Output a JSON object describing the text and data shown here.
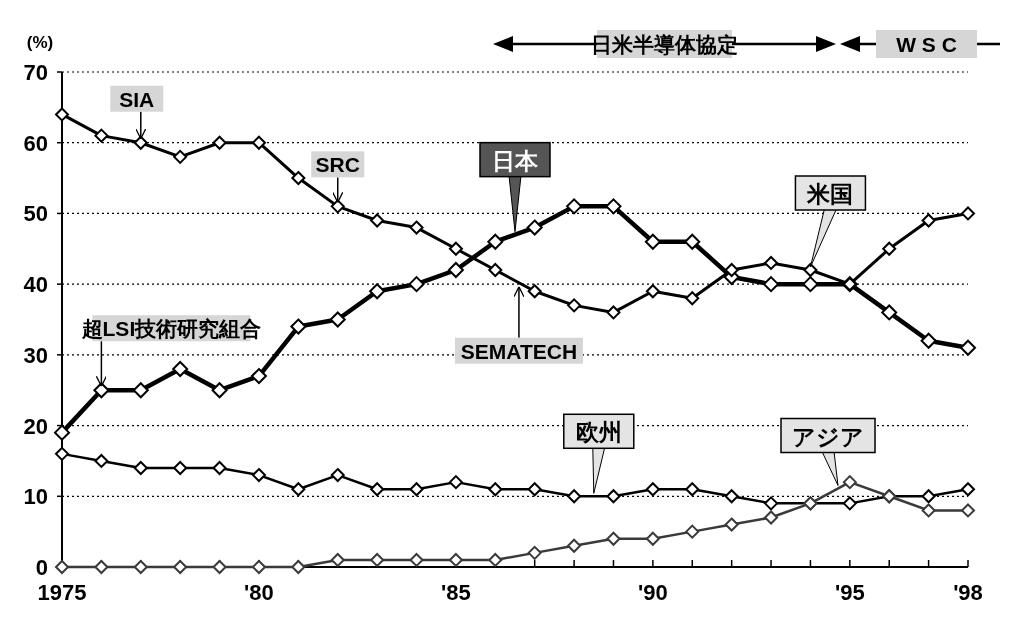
{
  "chart_data": {
    "type": "line",
    "ylabel": "(%)",
    "x": [
      1975,
      1976,
      1977,
      1978,
      1979,
      1980,
      1981,
      1982,
      1983,
      1984,
      1985,
      1986,
      1987,
      1988,
      1989,
      1990,
      1991,
      1992,
      1993,
      1994,
      1995,
      1996,
      1997,
      1998
    ],
    "series": [
      {
        "name": "日本",
        "color": "#000000",
        "values": [
          19,
          25,
          25,
          28,
          25,
          27,
          34,
          35,
          39,
          40,
          42,
          46,
          48,
          51,
          51,
          46,
          46,
          41,
          40,
          40,
          40,
          36,
          32,
          31
        ]
      },
      {
        "name": "米国",
        "color": "#000000",
        "values": [
          64,
          61,
          60,
          58,
          60,
          60,
          55,
          51,
          49,
          48,
          45,
          42,
          39,
          37,
          36,
          39,
          38,
          42,
          43,
          42,
          40,
          45,
          49,
          50
        ]
      },
      {
        "name": "欧州",
        "color": "#000000",
        "values": [
          16,
          15,
          14,
          14,
          14,
          13,
          11,
          13,
          11,
          11,
          12,
          11,
          11,
          10,
          10,
          11,
          11,
          10,
          9,
          9,
          9,
          10,
          10,
          11
        ]
      },
      {
        "name": "アジア",
        "color": "#3a3a3a",
        "values": [
          0,
          0,
          0,
          0,
          0,
          0,
          0,
          1,
          1,
          1,
          1,
          1,
          2,
          3,
          4,
          4,
          5,
          6,
          7,
          9,
          12,
          10,
          8,
          8
        ]
      }
    ],
    "xlim": [
      1975,
      1998
    ],
    "xticks": [
      1975,
      {
        "value": 1976,
        "label": null
      },
      {
        "value": 1977,
        "label": null
      },
      {
        "value": 1978,
        "label": null
      },
      {
        "value": 1979,
        "label": null
      },
      {
        "value": 1980,
        "label": "'80"
      },
      {
        "value": 1981,
        "label": null
      },
      {
        "value": 1982,
        "label": null
      },
      {
        "value": 1983,
        "label": null
      },
      {
        "value": 1984,
        "label": null
      },
      {
        "value": 1985,
        "label": "'85"
      },
      {
        "value": 1986,
        "label": null
      },
      {
        "value": 1987,
        "label": null
      },
      {
        "value": 1988,
        "label": null
      },
      {
        "value": 1989,
        "label": null
      },
      {
        "value": 1990,
        "label": "'90"
      },
      {
        "value": 1991,
        "label": null
      },
      {
        "value": 1992,
        "label": null
      },
      {
        "value": 1993,
        "label": null
      },
      {
        "value": 1994,
        "label": null
      },
      {
        "value": 1995,
        "label": "'95"
      },
      {
        "value": 1996,
        "label": null
      },
      {
        "value": 1997,
        "label": null
      },
      {
        "value": 1998,
        "label": "'98"
      }
    ],
    "ylim": [
      0,
      70
    ],
    "yticks": [
      0,
      10,
      20,
      30,
      40,
      50,
      60,
      70
    ],
    "grid": "y",
    "legend": false,
    "marker": "diamond",
    "line_style": "solid",
    "annotations": [
      {
        "text": "SIA",
        "x": 1977,
        "y": 60
      },
      {
        "text": "SRC",
        "x": 1982,
        "y": 51
      },
      {
        "text": "超LSI技術研究組合",
        "x": 1976,
        "y": 25
      },
      {
        "text": "SEMATECH",
        "x": 1986.6,
        "y": 40.2
      },
      "日米半導体協定",
      "W S C"
    ]
  }
}
